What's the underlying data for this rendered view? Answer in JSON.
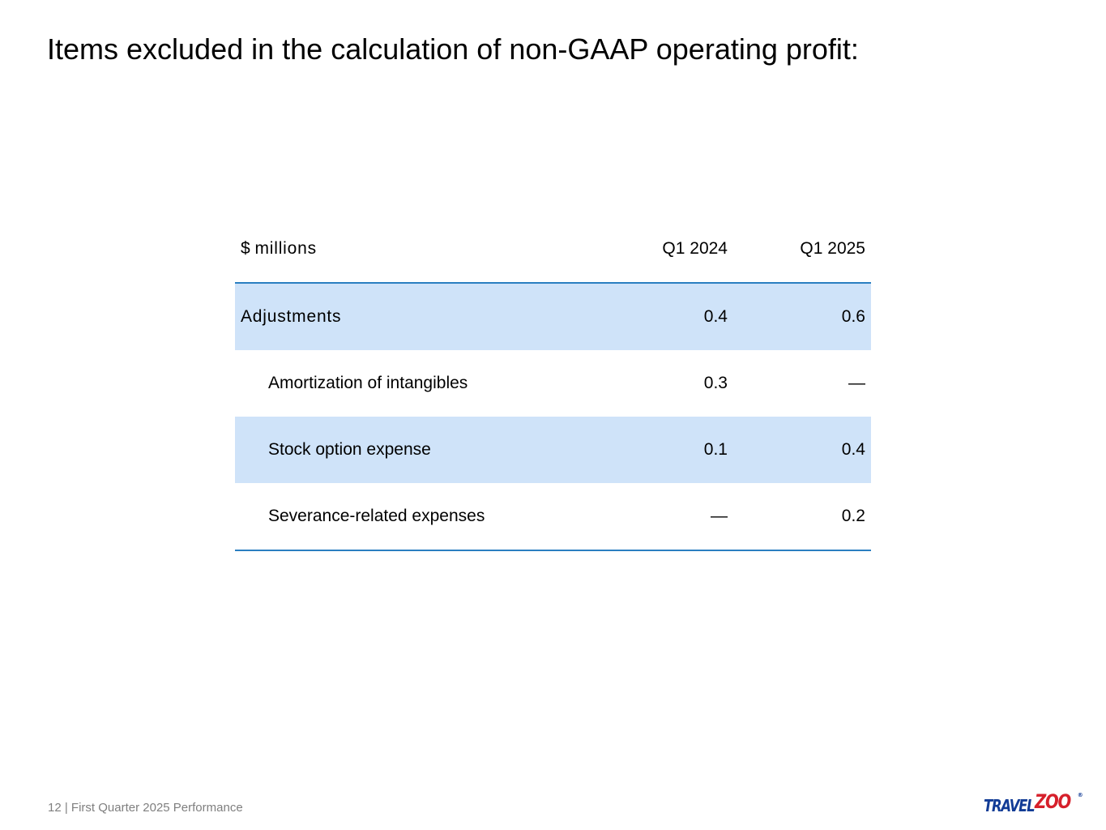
{
  "slide": {
    "title": "Items excluded in the calculation of non-GAAP operating profit:"
  },
  "table": {
    "header": {
      "label": "$ millions",
      "col1": "Q1 2024",
      "col2": "Q1 2025"
    },
    "rows": [
      {
        "label": "Adjustments",
        "q1_2024": "0.4",
        "q1_2025": "0.6"
      },
      {
        "label": "Amortization of intangibles",
        "q1_2024": "0.3",
        "q1_2025": "—"
      },
      {
        "label": "Stock option expense",
        "q1_2024": "0.1",
        "q1_2025": "0.4"
      },
      {
        "label": "Severance-related expenses",
        "q1_2024": "—",
        "q1_2025": "0.2"
      }
    ]
  },
  "footer": {
    "text": "12 | First Quarter 2025 Performance"
  },
  "logo": {
    "part1": "TRAVEL",
    "part2": "ZOO",
    "mark": "®",
    "brand_blue": "#123c96",
    "brand_red": "#d6202b"
  },
  "colors": {
    "row_shade": "#cfe3f9",
    "rule": "#2a7fc1",
    "footer_text": "#7f7f7f"
  }
}
